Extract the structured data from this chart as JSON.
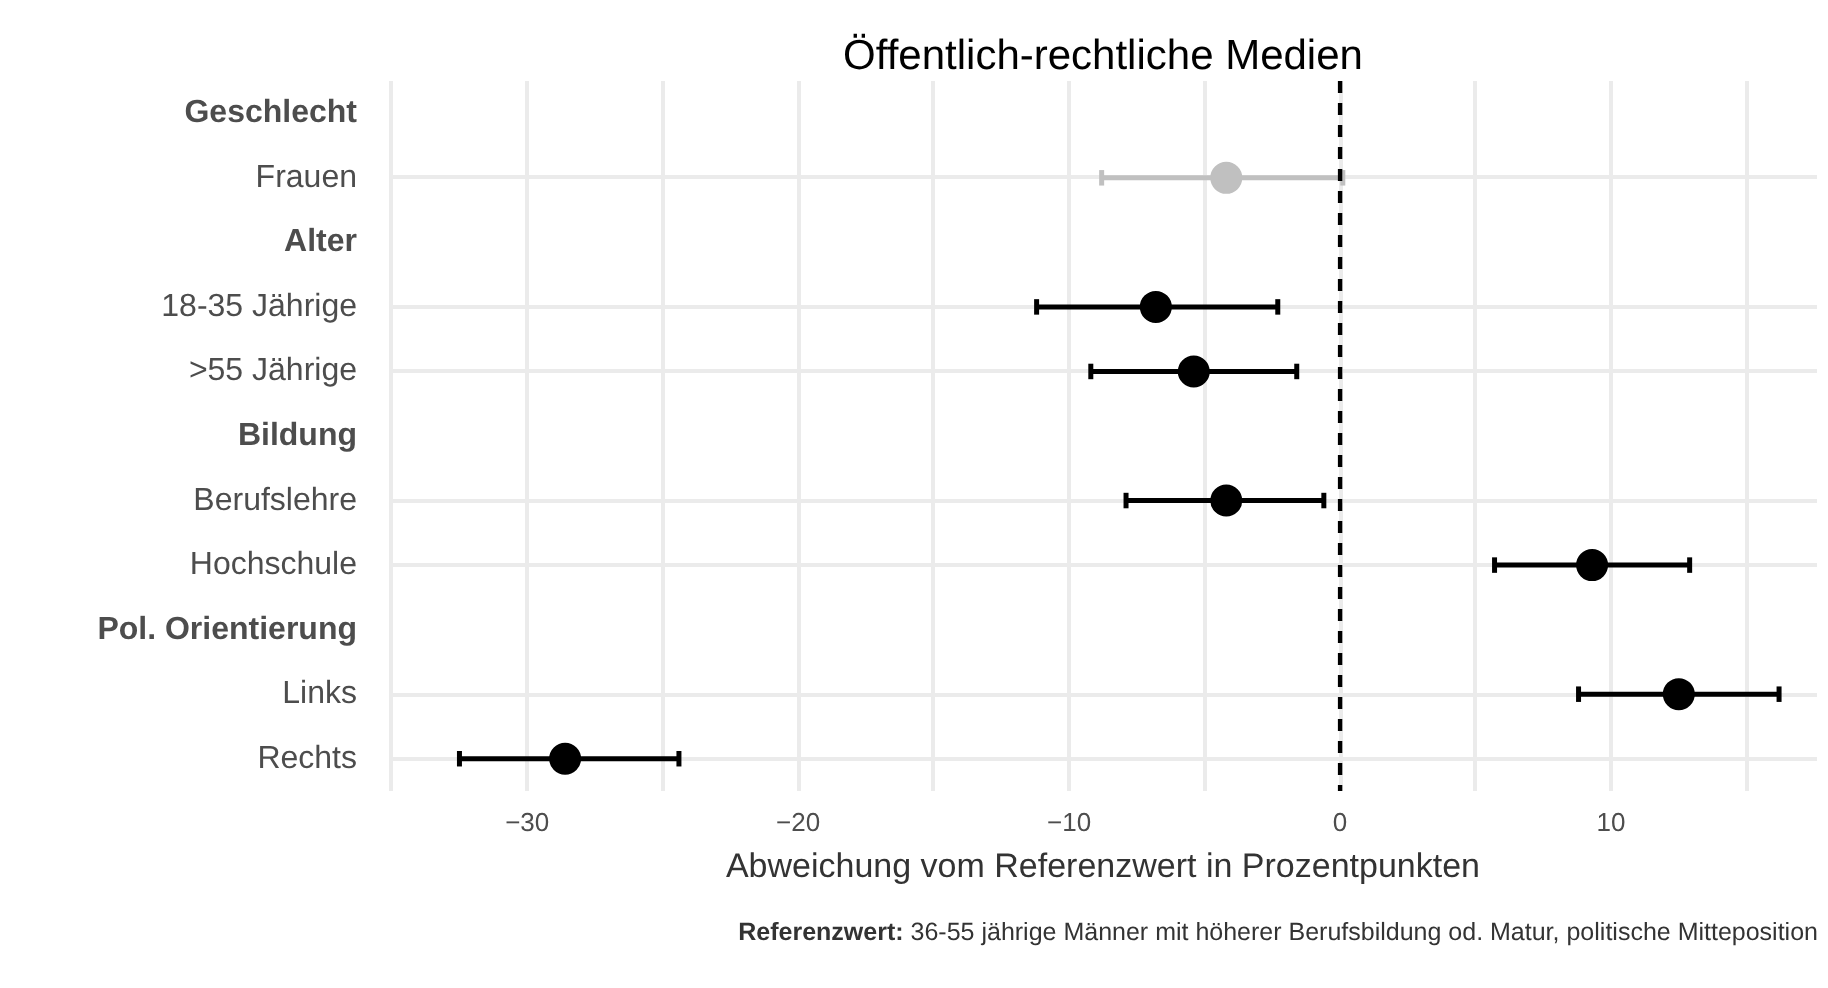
{
  "chart_data": {
    "type": "scatter",
    "orientation": "horizontal",
    "title": "Öffentlich-rechtliche Medien",
    "xlabel": "Abweichung vom Referenzwert in Prozentpunkten",
    "categories": [
      "Geschlecht",
      "Frauen",
      "Alter",
      "18-35 Jährige",
      ">55 Jährige",
      "Bildung",
      "Berufslehre",
      "Hochschule",
      "Pol. Orientierung",
      "Links",
      "Rechts"
    ],
    "values": [
      null,
      -4.2,
      null,
      -6.8,
      -5.4,
      null,
      -4.2,
      9.3,
      null,
      12.5,
      -28.6
    ],
    "errors": [
      null,
      [
        -8.8,
        0.1
      ],
      null,
      [
        -11.2,
        -2.3
      ],
      [
        -9.2,
        -1.6
      ],
      null,
      [
        -7.9,
        -0.6
      ],
      [
        5.7,
        12.9
      ],
      null,
      [
        8.8,
        16.2
      ],
      [
        -32.5,
        -24.4
      ]
    ],
    "colors": [
      "#000000",
      "#c0c0c0",
      "#000000",
      "#000000",
      "#000000",
      "#000000",
      "#000000",
      "#000000",
      "#000000",
      "#000000",
      "#000000"
    ],
    "marker": "circle",
    "grid": true,
    "xlim": [
      -35.1,
      17.6
    ],
    "xticks": [
      {
        "value": -35,
        "label": null
      },
      {
        "value": -30,
        "label": "−30"
      },
      {
        "value": -25,
        "label": null
      },
      {
        "value": -20,
        "label": "−20"
      },
      {
        "value": -15,
        "label": null
      },
      {
        "value": -10,
        "label": "−10"
      },
      {
        "value": -5,
        "label": null
      },
      0,
      {
        "value": 5,
        "label": null
      },
      10,
      {
        "value": 15,
        "label": null
      }
    ],
    "ref_lines": [
      {
        "axis": "x",
        "value": 0,
        "color": "#000000",
        "line_style": "dashed"
      }
    ],
    "annotations": [
      "Referenzwert: 36-55 jährige Männer mit höherer Berufsbildung od. Matur, politische Mitteposition"
    ]
  }
}
